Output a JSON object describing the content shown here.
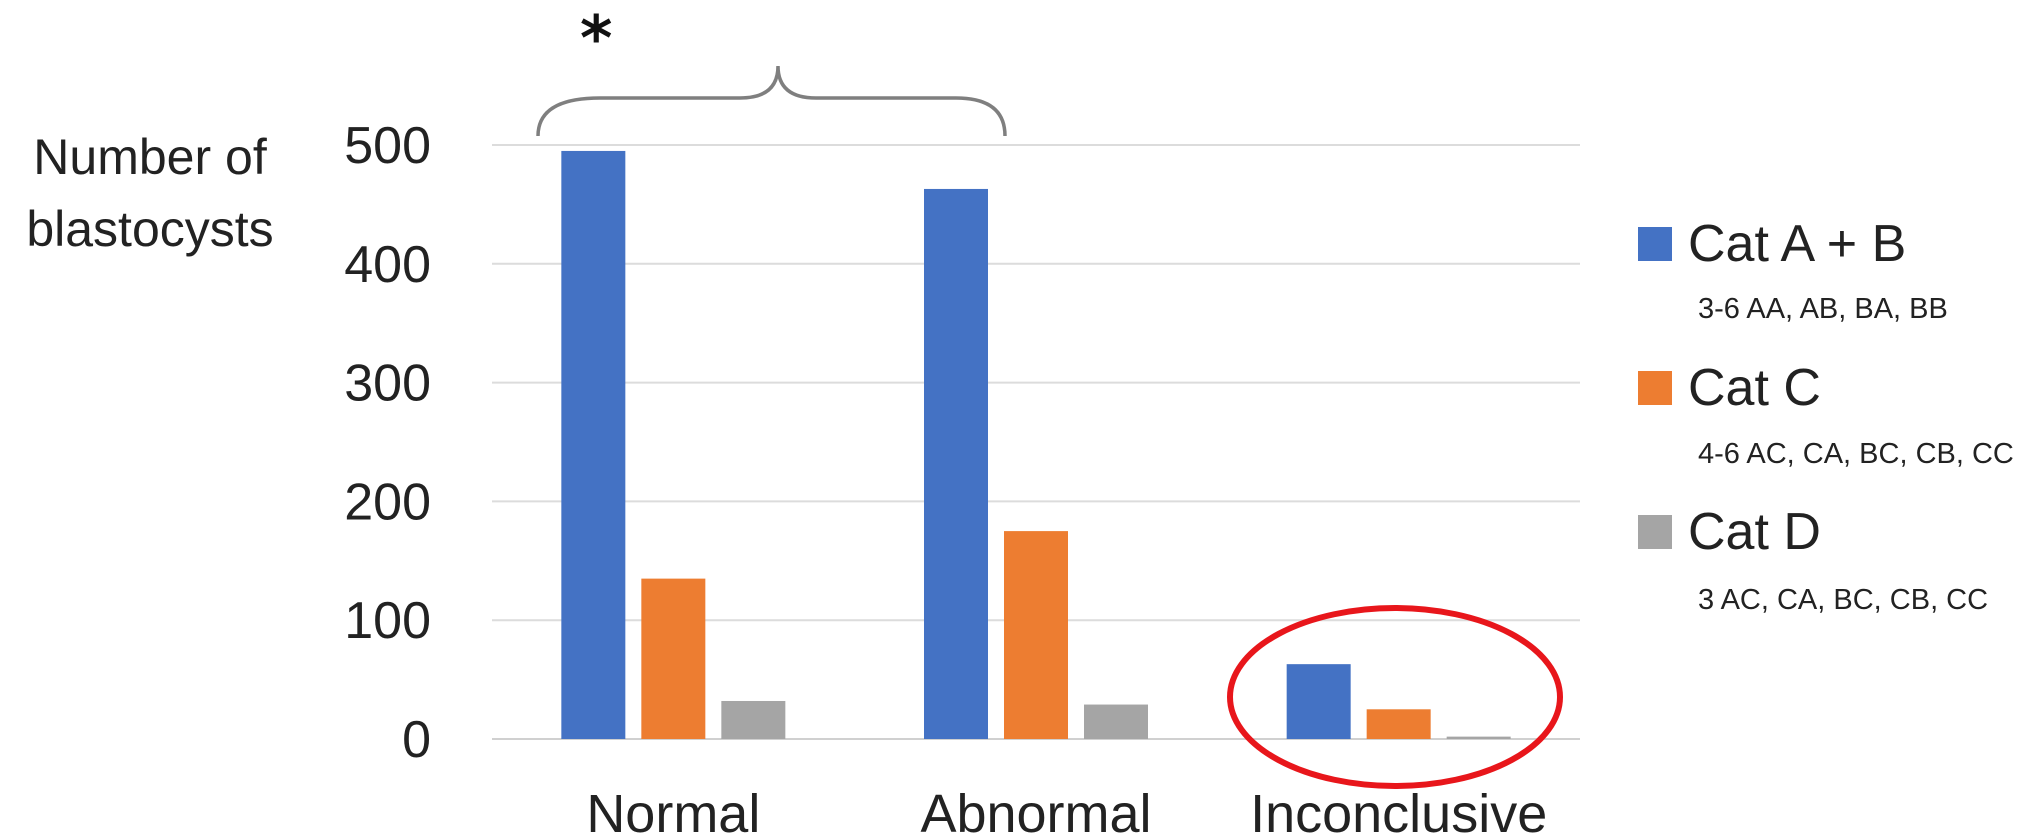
{
  "chart_data": {
    "type": "bar",
    "categories": [
      "Normal",
      "Abnormal",
      "Inconclusive"
    ],
    "series": [
      {
        "name": "Cat A + B",
        "values": [
          495,
          463,
          63
        ],
        "color": "#4472C4"
      },
      {
        "name": "Cat C",
        "values": [
          135,
          175,
          25
        ],
        "color": "#ED7D31"
      },
      {
        "name": "Cat D",
        "values": [
          32,
          29,
          2
        ],
        "color": "#A5A5A5"
      }
    ],
    "legend_descriptions": [
      "3-6 AA, AB, BA, BB",
      "4-6 AC, CA, BC, CB, CC",
      "3 AC, CA, BC, CB, CC"
    ],
    "ylabel_lines": [
      "Number of",
      "blastocysts"
    ],
    "ylim": [
      0,
      500
    ],
    "yticks": [
      0,
      100,
      200,
      300,
      400,
      500
    ],
    "grid": true,
    "legend_position": "right",
    "annotations": {
      "significance_marker": "*",
      "bracket": "Normal–Abnormal",
      "highlight_circle_color": "#E8161B",
      "highlight_target": "Inconclusive"
    }
  }
}
